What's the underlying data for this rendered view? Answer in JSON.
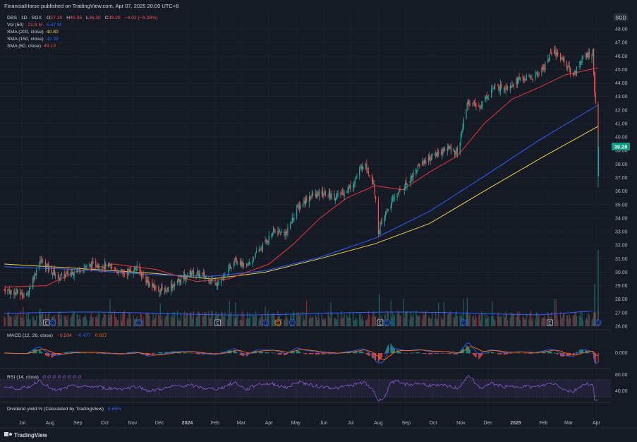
{
  "header": {
    "published_line": "FinancialHorse published on TradingView.com, Apr 07, 2025 20:00 UTC+8"
  },
  "currency_badge": "SGD",
  "legend": {
    "symbol": "DBS · 1D · SGX",
    "o_label": "O",
    "o_value": "37.10",
    "h_label": "H",
    "h_value": "40.35",
    "l_label": "L",
    "l_value": "36.30",
    "c_label": "C",
    "c_value": "39.28",
    "change": "−4.02 (−9.28%)",
    "vol_label": "Vol (50)",
    "vol_value_1": "21.6 M",
    "vol_value_2": "5.47 M",
    "sma200_label": "SMA (200, close)",
    "sma200_value": "40.80",
    "sma150_label": "SMA (150, close)",
    "sma150_value": "42.38",
    "sma50_label": "SMA (50, close)",
    "sma50_value": "45.13"
  },
  "last_price_label": "39.28",
  "macd_legend": {
    "label": "MACD (12, 26, close)",
    "v1": "−0.504",
    "v2": "−0.477",
    "v3": "0.027"
  },
  "rsi_legend": {
    "label": "RSI (14, close)",
    "values": "Ø  Ø  Ø  Ø  Ø  Ø  Ø  Ø"
  },
  "dividend_legend": {
    "label": "Dividend yield % (Calculated by TradingView)",
    "value": "5.65%"
  },
  "footer_brand": "TradingView",
  "colors": {
    "background": "#161a25",
    "up": "#26a69a",
    "down": "#ef5350",
    "sma50": "#e03b3b",
    "sma150": "#2962ff",
    "sma200": "#f0d348",
    "rsi": "#7e57c2",
    "macd_line": "#2962ff",
    "signal_line": "#ff6d00",
    "badge_green": "#089981"
  },
  "chart_data": {
    "type": "candlestick",
    "symbol": "DBS",
    "interval": "1D",
    "exchange": "SGX",
    "price_axis": {
      "ticks": [
        "48.00",
        "47.00",
        "46.00",
        "45.00",
        "44.00",
        "43.00",
        "42.00",
        "41.00",
        "40.00",
        "39.00",
        "38.00",
        "37.00",
        "36.00",
        "35.00",
        "34.00",
        "33.00",
        "32.00",
        "31.00",
        "30.00",
        "29.00",
        "28.00",
        "27.00",
        "26.00"
      ],
      "range": [
        26,
        48
      ]
    },
    "x_axis": {
      "ticks": [
        "Jul",
        "Aug",
        "Sep",
        "Oct",
        "Nov",
        "Dec",
        "2024",
        "Feb",
        "Mar",
        "Apr",
        "May",
        "Jun",
        "Jul",
        "Aug",
        "Sep",
        "Oct",
        "Nov",
        "Dec",
        "2025",
        "Feb",
        "Mar",
        "Apr"
      ]
    },
    "close_points": [
      {
        "date": "2023-06-15",
        "close": 28.7
      },
      {
        "date": "2023-07-10",
        "close": 28.3
      },
      {
        "date": "2023-07-25",
        "close": 30.9
      },
      {
        "date": "2023-08-15",
        "close": 29.6
      },
      {
        "date": "2023-09-05",
        "close": 30.2
      },
      {
        "date": "2023-09-25",
        "close": 30.6
      },
      {
        "date": "2023-10-10",
        "close": 30.4
      },
      {
        "date": "2023-10-25",
        "close": 29.9
      },
      {
        "date": "2023-11-10",
        "close": 30.3
      },
      {
        "date": "2023-11-25",
        "close": 29.0
      },
      {
        "date": "2023-12-10",
        "close": 28.6
      },
      {
        "date": "2023-12-28",
        "close": 29.4
      },
      {
        "date": "2024-01-10",
        "close": 30.0
      },
      {
        "date": "2024-01-25",
        "close": 29.7
      },
      {
        "date": "2024-02-05",
        "close": 29.2
      },
      {
        "date": "2024-02-15",
        "close": 29.5
      },
      {
        "date": "2024-02-27",
        "close": 31.1
      },
      {
        "date": "2024-03-10",
        "close": 30.3
      },
      {
        "date": "2024-03-25",
        "close": 31.6
      },
      {
        "date": "2024-04-10",
        "close": 33.0
      },
      {
        "date": "2024-04-25",
        "close": 32.9
      },
      {
        "date": "2024-05-05",
        "close": 34.6
      },
      {
        "date": "2024-05-20",
        "close": 35.6
      },
      {
        "date": "2024-06-05",
        "close": 35.8
      },
      {
        "date": "2024-06-20",
        "close": 35.6
      },
      {
        "date": "2024-07-05",
        "close": 36.3
      },
      {
        "date": "2024-07-20",
        "close": 38.1
      },
      {
        "date": "2024-07-31",
        "close": 36.6
      },
      {
        "date": "2024-08-05",
        "close": 33.0
      },
      {
        "date": "2024-08-15",
        "close": 34.6
      },
      {
        "date": "2024-08-25",
        "close": 35.8
      },
      {
        "date": "2024-09-05",
        "close": 36.5
      },
      {
        "date": "2024-09-20",
        "close": 38.0
      },
      {
        "date": "2024-10-05",
        "close": 38.6
      },
      {
        "date": "2024-10-20",
        "close": 39.2
      },
      {
        "date": "2024-11-02",
        "close": 38.9
      },
      {
        "date": "2024-11-12",
        "close": 42.6
      },
      {
        "date": "2024-11-25",
        "close": 42.2
      },
      {
        "date": "2024-12-10",
        "close": 43.6
      },
      {
        "date": "2024-12-28",
        "close": 43.8
      },
      {
        "date": "2025-01-10",
        "close": 44.3
      },
      {
        "date": "2025-01-25",
        "close": 44.4
      },
      {
        "date": "2025-02-05",
        "close": 45.1
      },
      {
        "date": "2025-02-15",
        "close": 46.4
      },
      {
        "date": "2025-02-25",
        "close": 45.9
      },
      {
        "date": "2025-03-10",
        "close": 44.6
      },
      {
        "date": "2025-03-20",
        "close": 45.8
      },
      {
        "date": "2025-04-01",
        "close": 46.3
      },
      {
        "date": "2025-04-03",
        "close": 43.3
      },
      {
        "date": "2025-04-07",
        "close": 39.28
      }
    ],
    "sma50": [
      {
        "date": "2023-06-15",
        "v": 28.9
      },
      {
        "date": "2023-08-01",
        "v": 29.0
      },
      {
        "date": "2023-09-01",
        "v": 30.0
      },
      {
        "date": "2023-10-15",
        "v": 30.6
      },
      {
        "date": "2023-12-01",
        "v": 30.2
      },
      {
        "date": "2024-01-15",
        "v": 29.3
      },
      {
        "date": "2024-02-20",
        "v": 29.5
      },
      {
        "date": "2024-04-05",
        "v": 30.6
      },
      {
        "date": "2024-05-01",
        "v": 32.0
      },
      {
        "date": "2024-06-01",
        "v": 34.0
      },
      {
        "date": "2024-07-01",
        "v": 35.5
      },
      {
        "date": "2024-08-01",
        "v": 36.4
      },
      {
        "date": "2024-09-01",
        "v": 36.1
      },
      {
        "date": "2024-10-01",
        "v": 37.4
      },
      {
        "date": "2024-11-01",
        "v": 38.6
      },
      {
        "date": "2024-12-01",
        "v": 41.0
      },
      {
        "date": "2025-01-01",
        "v": 42.8
      },
      {
        "date": "2025-02-01",
        "v": 43.7
      },
      {
        "date": "2025-03-01",
        "v": 44.6
      },
      {
        "date": "2025-04-07",
        "v": 45.13
      }
    ],
    "sma150": [
      {
        "date": "2023-06-15",
        "v": 30.4
      },
      {
        "date": "2023-09-01",
        "v": 30.2
      },
      {
        "date": "2023-12-01",
        "v": 29.8
      },
      {
        "date": "2024-02-01",
        "v": 29.7
      },
      {
        "date": "2024-04-01",
        "v": 30.1
      },
      {
        "date": "2024-06-01",
        "v": 31.1
      },
      {
        "date": "2024-08-01",
        "v": 32.5
      },
      {
        "date": "2024-10-01",
        "v": 34.5
      },
      {
        "date": "2024-12-01",
        "v": 37.1
      },
      {
        "date": "2025-02-01",
        "v": 39.8
      },
      {
        "date": "2025-04-07",
        "v": 42.38
      }
    ],
    "sma200": [
      {
        "date": "2023-06-15",
        "v": 30.6
      },
      {
        "date": "2023-09-01",
        "v": 30.3
      },
      {
        "date": "2023-12-01",
        "v": 29.9
      },
      {
        "date": "2024-02-01",
        "v": 29.5
      },
      {
        "date": "2024-04-01",
        "v": 30.0
      },
      {
        "date": "2024-06-01",
        "v": 31.0
      },
      {
        "date": "2024-08-01",
        "v": 32.1
      },
      {
        "date": "2024-10-01",
        "v": 33.6
      },
      {
        "date": "2024-12-01",
        "v": 36.0
      },
      {
        "date": "2025-02-01",
        "v": 38.4
      },
      {
        "date": "2025-04-07",
        "v": 40.8
      }
    ],
    "events": [
      {
        "date": "2023-08-01",
        "label": "E"
      },
      {
        "date": "2023-08-08",
        "label": "D"
      },
      {
        "date": "2023-11-12",
        "label": "D"
      },
      {
        "date": "2024-02-08",
        "label": "E"
      },
      {
        "date": "2024-04-01",
        "label": "D"
      },
      {
        "date": "2024-04-15",
        "label": "S"
      },
      {
        "date": "2024-05-01",
        "label": "D"
      },
      {
        "date": "2024-08-07",
        "label": "E"
      },
      {
        "date": "2024-08-15",
        "label": "D"
      },
      {
        "date": "2024-11-08",
        "label": "D"
      },
      {
        "date": "2025-02-12",
        "label": "E"
      },
      {
        "date": "2025-04-07",
        "label": "D"
      }
    ],
    "macd": {
      "axis_ticks": [
        "0.000"
      ]
    },
    "rsi": {
      "axis_ticks": [
        "80.00",
        "40.00"
      ]
    }
  }
}
